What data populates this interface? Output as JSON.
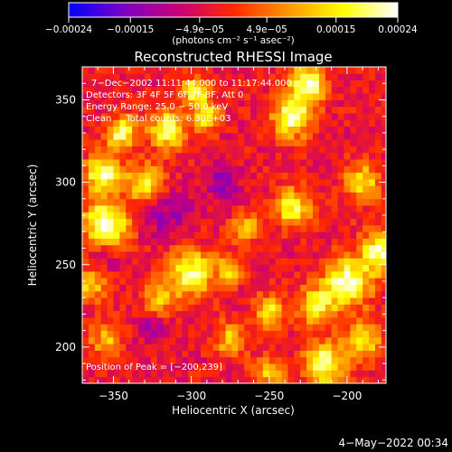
{
  "chart_data": {
    "type": "heatmap",
    "title": "Reconstructed RHESSI Image",
    "xlabel": "Heliocentric X (arcsec)",
    "ylabel": "Heliocentric Y (arcsec)",
    "xlim": [
      -370,
      -175
    ],
    "ylim": [
      178,
      370
    ],
    "x_ticks": [
      -350,
      -300,
      -250,
      -200
    ],
    "x_tick_labels": [
      "−350",
      "−300",
      "−250",
      "−200"
    ],
    "y_ticks": [
      200,
      250,
      300,
      350
    ],
    "y_tick_labels": [
      "200",
      "250",
      "300",
      "350"
    ],
    "colorbar": {
      "min": -0.00024,
      "max": 0.00024,
      "tick_values": [
        -0.00024,
        -0.00015,
        -4.9e-05,
        4.9e-05,
        0.00015,
        0.00024
      ],
      "tick_labels": [
        "−0.00024",
        "−0.00015",
        "−4.9e−05",
        "4.9e−05",
        "0.00015",
        "0.00024"
      ],
      "unit_label": "(photons cm⁻² s⁻¹ asec⁻²)",
      "colormap": [
        "#0000ff",
        "#7d00c8",
        "#c80078",
        "#ff2800",
        "#ff9600",
        "#ffff00",
        "#ffffff"
      ]
    },
    "annotations": [
      "7−Dec−2002 11:11:44.000 to 11:17:44.000",
      "Detectors: 3F 4F 5F 6F 7F 8F, Att 0",
      "Energy Range: 25.0 − 50.0 keV",
      "Clean     Total counts: 6.30E+03"
    ],
    "peak_label": "Position of Peak = [−200,239]",
    "peak": [
      -200,
      239
    ],
    "background_level": -3e-05,
    "hot_regions": [
      {
        "center": [
          -357,
          305
        ],
        "radius_arcsec": 8,
        "level": 0.00022
      },
      {
        "center": [
          -355,
          275
        ],
        "radius_arcsec": 10,
        "level": 0.00024
      },
      {
        "center": [
          -345,
          330
        ],
        "radius_arcsec": 7,
        "level": 0.0002
      },
      {
        "center": [
          -315,
          332
        ],
        "radius_arcsec": 8,
        "level": 0.00021
      },
      {
        "center": [
          -290,
          340
        ],
        "radius_arcsec": 6,
        "level": 0.00016
      },
      {
        "center": [
          -330,
          300
        ],
        "radius_arcsec": 8,
        "level": 0.00016
      },
      {
        "center": [
          -297,
          355
        ],
        "radius_arcsec": 6,
        "level": 0.0002
      },
      {
        "center": [
          -365,
          238
        ],
        "radius_arcsec": 7,
        "level": 0.00014
      },
      {
        "center": [
          -265,
          272
        ],
        "radius_arcsec": 6,
        "level": 0.00014
      },
      {
        "center": [
          -235,
          285
        ],
        "radius_arcsec": 8,
        "level": 0.00018
      },
      {
        "center": [
          -235,
          340
        ],
        "radius_arcsec": 9,
        "level": 0.00021
      },
      {
        "center": [
          -225,
          360
        ],
        "radius_arcsec": 8,
        "level": 0.00022
      },
      {
        "center": [
          -190,
          300
        ],
        "radius_arcsec": 8,
        "level": 0.00016
      },
      {
        "center": [
          -178,
          258
        ],
        "radius_arcsec": 9,
        "level": 0.00022
      },
      {
        "center": [
          -200,
          239
        ],
        "radius_arcsec": 10,
        "level": 0.00024
      },
      {
        "center": [
          -220,
          225
        ],
        "radius_arcsec": 8,
        "level": 0.00017
      },
      {
        "center": [
          -250,
          222
        ],
        "radius_arcsec": 7,
        "level": 0.00015
      },
      {
        "center": [
          -300,
          245
        ],
        "radius_arcsec": 10,
        "level": 0.0002
      },
      {
        "center": [
          -320,
          230
        ],
        "radius_arcsec": 7,
        "level": 0.00012
      },
      {
        "center": [
          -275,
          248
        ],
        "radius_arcsec": 6,
        "level": 0.00013
      },
      {
        "center": [
          -355,
          205
        ],
        "radius_arcsec": 7,
        "level": 0.00011
      },
      {
        "center": [
          -275,
          205
        ],
        "radius_arcsec": 7,
        "level": 0.00012
      },
      {
        "center": [
          -215,
          190
        ],
        "radius_arcsec": 9,
        "level": 0.00022
      },
      {
        "center": [
          -190,
          205
        ],
        "radius_arcsec": 8,
        "level": 0.00017
      },
      {
        "center": [
          -250,
          185
        ],
        "radius_arcsec": 7,
        "level": 0.00012
      }
    ],
    "cold_regions": [
      {
        "center": [
          -315,
          280
        ],
        "radius_arcsec": 10,
        "level": -0.00012
      },
      {
        "center": [
          -280,
          300
        ],
        "radius_arcsec": 8,
        "level": -0.00012
      },
      {
        "center": [
          -325,
          210
        ],
        "radius_arcsec": 6,
        "level": -0.00012
      },
      {
        "center": [
          -355,
          255
        ],
        "radius_arcsec": 6,
        "level": -0.0001
      }
    ]
  },
  "footer": {
    "timestamp": "4−May−2022 00:34"
  }
}
